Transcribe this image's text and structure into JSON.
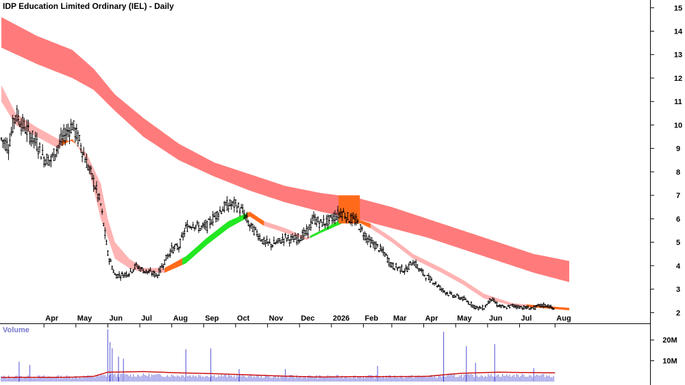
{
  "chart_data": [
    {
      "type": "candlestick",
      "title": "IDP Education Limited Ordinary (IEL) - Daily",
      "y_axis_position": "right",
      "ylim": [
        1.6,
        15.3
      ],
      "y_ticks": [
        2,
        3,
        4,
        5,
        6,
        7,
        8,
        9,
        10,
        11,
        12,
        13,
        14,
        15
      ],
      "x_range": [
        0,
        91
      ],
      "x_ticks": [
        {
          "label": "Apr",
          "week": 6
        },
        {
          "label": "May",
          "week": 10.5
        },
        {
          "label": "Jun",
          "week": 15
        },
        {
          "label": "Jul",
          "week": 19.5
        },
        {
          "label": "Aug",
          "week": 24
        },
        {
          "label": "Sep",
          "week": 28.5
        },
        {
          "label": "Oct",
          "week": 33
        },
        {
          "label": "Nov",
          "week": 37.5
        },
        {
          "label": "Dec",
          "week": 42
        },
        {
          "label": "2026",
          "week": 46.5
        },
        {
          "label": "Feb",
          "week": 51
        },
        {
          "label": "Mar",
          "week": 55
        },
        {
          "label": "Apr",
          "week": 59.5
        },
        {
          "label": "May",
          "week": 64
        },
        {
          "label": "Jun",
          "week": 68.5
        },
        {
          "label": "Jul",
          "week": 73
        },
        {
          "label": "Aug",
          "week": 78
        }
      ],
      "long_band": {
        "color": "#ff7b7b",
        "upper": [
          [
            0,
            14.6
          ],
          [
            5,
            13.8
          ],
          [
            10,
            13.2
          ],
          [
            13,
            12.4
          ],
          [
            16,
            11.3
          ],
          [
            20,
            10.3
          ],
          [
            25,
            9.2
          ],
          [
            30,
            8.4
          ],
          [
            35,
            7.9
          ],
          [
            40,
            7.4
          ],
          [
            45,
            7.1
          ],
          [
            50,
            6.9
          ],
          [
            55,
            6.5
          ],
          [
            60,
            6.0
          ],
          [
            65,
            5.5
          ],
          [
            70,
            5.0
          ],
          [
            75,
            4.5
          ],
          [
            80,
            4.2
          ]
        ],
        "lower": [
          [
            0,
            13.3
          ],
          [
            5,
            12.6
          ],
          [
            10,
            12.0
          ],
          [
            13,
            11.5
          ],
          [
            16,
            10.6
          ],
          [
            20,
            9.5
          ],
          [
            25,
            8.5
          ],
          [
            30,
            7.8
          ],
          [
            35,
            7.2
          ],
          [
            40,
            6.7
          ],
          [
            45,
            6.3
          ],
          [
            50,
            6.0
          ],
          [
            55,
            5.6
          ],
          [
            60,
            5.2
          ],
          [
            65,
            4.7
          ],
          [
            70,
            4.2
          ],
          [
            75,
            3.7
          ],
          [
            80,
            3.3
          ]
        ]
      },
      "short_band": {
        "color": "#ffb3b3",
        "upper": [
          [
            0,
            11.7
          ],
          [
            2,
            10.5
          ],
          [
            5,
            9.9
          ],
          [
            8,
            9.4
          ],
          [
            10,
            9.3
          ],
          [
            12,
            8.8
          ],
          [
            14,
            7.5
          ],
          [
            15,
            6.0
          ],
          [
            16,
            5.0
          ],
          [
            18,
            4.3
          ],
          [
            20,
            3.9
          ],
          [
            23,
            3.9
          ],
          [
            26,
            4.4
          ],
          [
            29,
            5.2
          ],
          [
            32,
            5.9
          ],
          [
            35,
            6.3
          ],
          [
            37,
            5.9
          ],
          [
            40,
            5.6
          ],
          [
            43,
            5.2
          ],
          [
            45,
            5.5
          ],
          [
            48,
            6.0
          ],
          [
            50,
            6.0
          ],
          [
            52,
            5.8
          ],
          [
            55,
            5.2
          ],
          [
            58,
            4.5
          ],
          [
            62,
            3.9
          ],
          [
            65,
            3.4
          ],
          [
            68,
            2.8
          ],
          [
            72,
            2.4
          ],
          [
            76,
            2.3
          ],
          [
            80,
            2.2
          ]
        ],
        "lower": [
          [
            0,
            11.0
          ],
          [
            2,
            10.0
          ],
          [
            5,
            9.5
          ],
          [
            8,
            9.0
          ],
          [
            10,
            9.4
          ],
          [
            12,
            8.5
          ],
          [
            14,
            6.0
          ],
          [
            15,
            5.2
          ],
          [
            16,
            4.3
          ],
          [
            18,
            3.9
          ],
          [
            20,
            3.7
          ],
          [
            23,
            3.7
          ],
          [
            26,
            4.1
          ],
          [
            29,
            4.9
          ],
          [
            32,
            5.6
          ],
          [
            35,
            6.1
          ],
          [
            37,
            5.7
          ],
          [
            40,
            5.4
          ],
          [
            43,
            5.1
          ],
          [
            45,
            5.4
          ],
          [
            48,
            5.8
          ],
          [
            50,
            5.9
          ],
          [
            52,
            5.6
          ],
          [
            55,
            5.0
          ],
          [
            58,
            4.3
          ],
          [
            62,
            3.7
          ],
          [
            65,
            3.2
          ],
          [
            68,
            2.6
          ],
          [
            72,
            2.3
          ],
          [
            76,
            2.2
          ],
          [
            80,
            2.1
          ]
        ]
      },
      "highlight_segments": [
        {
          "color": "#ff6a1a",
          "band": "short",
          "range": [
            8.5,
            10.8
          ]
        },
        {
          "color": "#ff6a1a",
          "band": "short",
          "range": [
            23,
            25.5
          ]
        },
        {
          "color": "#22e822",
          "band": "short",
          "range": [
            25.5,
            34.5
          ]
        },
        {
          "color": "#ff6a1a",
          "band": "short",
          "range": [
            34.5,
            37
          ]
        },
        {
          "color": "#22e822",
          "band": "short",
          "range": [
            43.5,
            50.5
          ]
        },
        {
          "color": "#ff6a1a",
          "band": "short",
          "range": [
            50.5,
            52
          ]
        },
        {
          "color": "#ff6a1a",
          "band": "short",
          "range": [
            74,
            80
          ]
        }
      ],
      "highlight_box": {
        "color": "#ff6a1a",
        "x_range": [
          47.5,
          50.5
        ],
        "y_range": [
          5.8,
          7.0
        ]
      },
      "price_path": [
        [
          0,
          9.4
        ],
        [
          1,
          9.1
        ],
        [
          2,
          10.5
        ],
        [
          3,
          10.0
        ],
        [
          4,
          9.6
        ],
        [
          5,
          9.2
        ],
        [
          6,
          8.6
        ],
        [
          7,
          8.5
        ],
        [
          8,
          9.1
        ],
        [
          9,
          9.6
        ],
        [
          10,
          10.0
        ],
        [
          11,
          9.3
        ],
        [
          12,
          8.4
        ],
        [
          13,
          7.6
        ],
        [
          14,
          6.6
        ],
        [
          15,
          4.5
        ],
        [
          16,
          3.6
        ],
        [
          17,
          3.6
        ],
        [
          18,
          3.7
        ],
        [
          19,
          4.0
        ],
        [
          20,
          3.8
        ],
        [
          21,
          3.7
        ],
        [
          22,
          3.6
        ],
        [
          23,
          4.2
        ],
        [
          24,
          4.7
        ],
        [
          25,
          4.8
        ],
        [
          26,
          5.6
        ],
        [
          27,
          5.8
        ],
        [
          28,
          5.6
        ],
        [
          29,
          5.7
        ],
        [
          30,
          6.1
        ],
        [
          31,
          6.4
        ],
        [
          32,
          6.6
        ],
        [
          33,
          6.6
        ],
        [
          34,
          6.3
        ],
        [
          35,
          5.7
        ],
        [
          36,
          5.4
        ],
        [
          37,
          5.0
        ],
        [
          38,
          4.9
        ],
        [
          39,
          5.0
        ],
        [
          40,
          5.2
        ],
        [
          41,
          5.1
        ],
        [
          42,
          5.2
        ],
        [
          43,
          5.4
        ],
        [
          44,
          6.0
        ],
        [
          45,
          5.8
        ],
        [
          46,
          5.9
        ],
        [
          47,
          6.1
        ],
        [
          48,
          6.3
        ],
        [
          49,
          6.0
        ],
        [
          50,
          5.9
        ],
        [
          51,
          5.4
        ],
        [
          52,
          5.0
        ],
        [
          53,
          4.8
        ],
        [
          54,
          4.5
        ],
        [
          55,
          4.0
        ],
        [
          56,
          3.9
        ],
        [
          57,
          3.8
        ],
        [
          58,
          4.2
        ],
        [
          59,
          3.8
        ],
        [
          60,
          3.5
        ],
        [
          61,
          3.3
        ],
        [
          62,
          3.0
        ],
        [
          63,
          2.8
        ],
        [
          64,
          2.7
        ],
        [
          65,
          2.6
        ],
        [
          66,
          2.4
        ],
        [
          67,
          2.2
        ],
        [
          68,
          2.2
        ],
        [
          69,
          2.6
        ],
        [
          70,
          2.3
        ],
        [
          71,
          2.2
        ],
        [
          72,
          2.3
        ],
        [
          73,
          2.25
        ],
        [
          74,
          2.2
        ],
        [
          75,
          2.2
        ],
        [
          76,
          2.3
        ],
        [
          77,
          2.3
        ],
        [
          78,
          2.1
        ]
      ]
    },
    {
      "type": "bar",
      "title": "Volume",
      "y_ticks": [
        {
          "value": 10,
          "label": "10M"
        },
        {
          "value": 20,
          "label": "20M"
        }
      ],
      "ylim": [
        0,
        26
      ],
      "bar_color": "#6b6bdc",
      "moving_average_color": "#cc1111",
      "ma_path": [
        [
          0,
          2.0
        ],
        [
          10,
          2.1
        ],
        [
          13,
          2.5
        ],
        [
          15,
          4.5
        ],
        [
          20,
          4.8
        ],
        [
          25,
          4.2
        ],
        [
          30,
          3.8
        ],
        [
          35,
          3.2
        ],
        [
          40,
          2.6
        ],
        [
          45,
          2.2
        ],
        [
          50,
          2.4
        ],
        [
          55,
          2.4
        ],
        [
          60,
          2.5
        ],
        [
          63,
          3.5
        ],
        [
          65,
          4.0
        ],
        [
          70,
          4.5
        ],
        [
          75,
          4.3
        ],
        [
          78,
          4.2
        ]
      ],
      "base_range": [
        0.8,
        2.5
      ],
      "spikes": [
        {
          "week": 2.5,
          "value": 9.5
        },
        {
          "week": 4,
          "value": 8.0
        },
        {
          "week": 15,
          "value": 25.0
        },
        {
          "week": 15.3,
          "value": 19.0
        },
        {
          "week": 15.6,
          "value": 16.0
        },
        {
          "week": 16.5,
          "value": 12.0
        },
        {
          "week": 17.2,
          "value": 11.0
        },
        {
          "week": 26,
          "value": 15.5
        },
        {
          "week": 29.5,
          "value": 16.0
        },
        {
          "week": 33.5,
          "value": 6.0
        },
        {
          "week": 40,
          "value": 6.0
        },
        {
          "week": 53,
          "value": 7.5
        },
        {
          "week": 62.3,
          "value": 24.0
        },
        {
          "week": 65.5,
          "value": 17.0
        },
        {
          "week": 66.8,
          "value": 9.0
        },
        {
          "week": 69.5,
          "value": 18.0
        },
        {
          "week": 75,
          "value": 6.5
        }
      ]
    }
  ]
}
